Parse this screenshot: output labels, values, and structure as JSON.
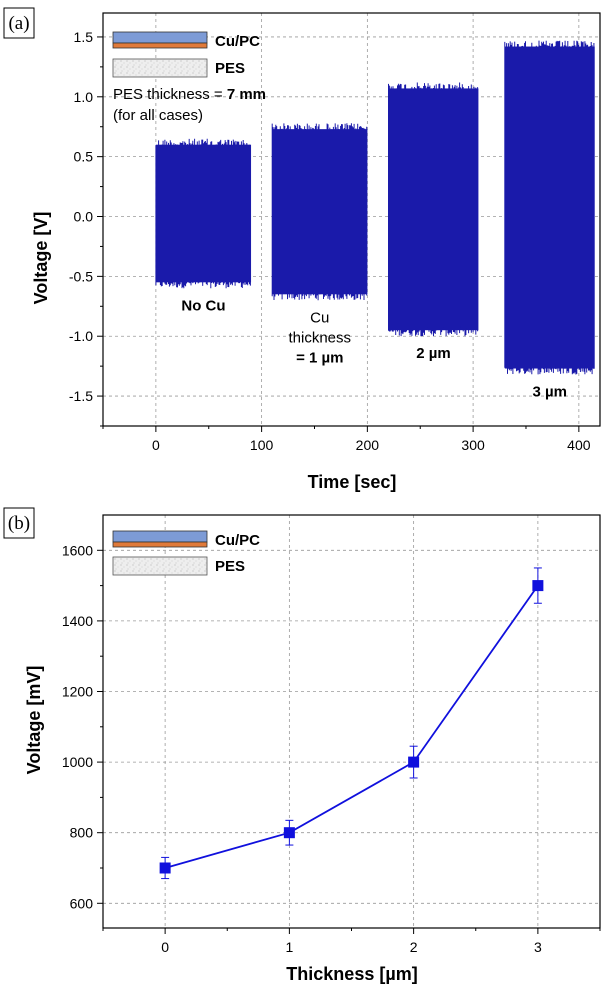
{
  "panels": [
    {
      "label": "(a)",
      "chart_data": {
        "type": "line",
        "title": "",
        "xlabel": "Time [sec]",
        "ylabel": "Voltage [V]",
        "xlim": [
          -50,
          420
        ],
        "ylim": [
          -1.75,
          1.7
        ],
        "xticks": [
          0,
          100,
          200,
          300,
          400
        ],
        "yticks": [
          -1.5,
          -1.0,
          -0.5,
          0.0,
          0.5,
          1.0,
          1.5
        ],
        "ytick_labels": [
          "-1.5",
          "-1.0",
          "-0.5",
          "0.0",
          "0.5",
          "1.0",
          "1.5"
        ],
        "grid": true,
        "series_color": "#1a1aaa",
        "series": [
          {
            "annotation": [
              "No Cu"
            ],
            "x_range": [
              0,
              90
            ],
            "y_range": [
              -0.6,
              0.65
            ]
          },
          {
            "annotation": [
              "Cu",
              "thickness",
              "= 1 µm"
            ],
            "x_range": [
              110,
              200
            ],
            "y_range": [
              -0.7,
              0.78
            ]
          },
          {
            "annotation": [
              "2 µm"
            ],
            "x_range": [
              220,
              305
            ],
            "y_range": [
              -1.0,
              1.12
            ]
          },
          {
            "annotation": [
              "3 µm"
            ],
            "x_range": [
              330,
              415
            ],
            "y_range": [
              -1.32,
              1.47
            ]
          }
        ]
      },
      "legend": {
        "items": [
          {
            "label": "Cu/PC",
            "colors": [
              "#7d9bd6",
              "#e07a3a"
            ]
          },
          {
            "label": "PES",
            "colors": [
              "#e6e6e6"
            ]
          }
        ],
        "note_line1_prefix": "PES thickness = ",
        "note_line1_value": "7 mm",
        "note_line2": "(for all cases)"
      }
    },
    {
      "label": "(b)",
      "chart_data": {
        "type": "line",
        "title": "",
        "xlabel": "Thickness [µm]",
        "ylabel": "Voltage [mV]",
        "xlim": [
          -0.5,
          3.5
        ],
        "ylim": [
          530,
          1700
        ],
        "xticks": [
          0,
          1,
          2,
          3
        ],
        "yticks": [
          600,
          800,
          1000,
          1200,
          1400,
          1600
        ],
        "grid": true,
        "series_color": "#1010dd",
        "x": [
          0,
          1,
          2,
          3
        ],
        "y": [
          700,
          800,
          1000,
          1500
        ],
        "yerr": [
          30,
          35,
          45,
          50
        ],
        "marker": "square"
      },
      "legend": {
        "items": [
          {
            "label": "Cu/PC",
            "colors": [
              "#7d9bd6",
              "#e07a3a"
            ]
          },
          {
            "label": "PES",
            "colors": [
              "#e6e6e6"
            ]
          }
        ]
      }
    }
  ]
}
